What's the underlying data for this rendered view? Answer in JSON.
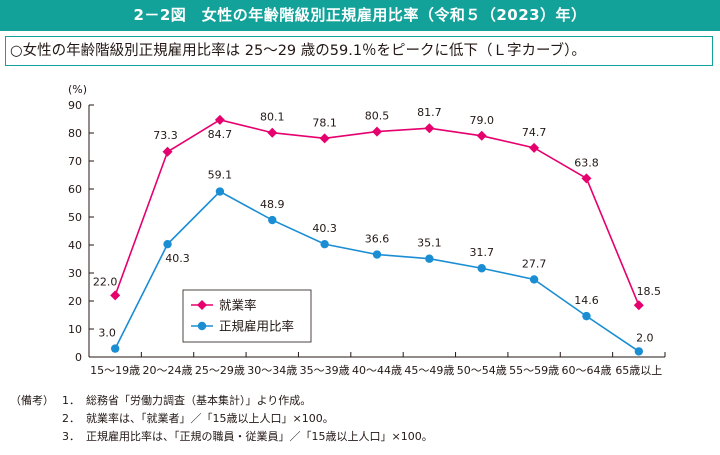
{
  "header": {
    "title": "2－2図　女性の年齢階級別正規雇用比率（令和５（2023）年）",
    "summary": "○女性の年齢階級別正規雇用比率は 25～29 歳の59.1％をピークに低下（Ｌ字カーブ）。"
  },
  "notes": {
    "prefix": "（備考）",
    "items": [
      {
        "num": "1．",
        "text": "総務省「労働力調査（基本集計）」より作成。"
      },
      {
        "num": "2．",
        "text": "就業率は、「就業者」／「15歳以上人口」×100。"
      },
      {
        "num": "3．",
        "text": "正規雇用比率は、「正規の職員・従業員」／「15歳以上人口」×100。"
      }
    ]
  },
  "chart_data": {
    "type": "line",
    "title": "女性の年齢階級別正規雇用比率（令和５（2023）年）",
    "ylabel": "(%)",
    "xlabel": "",
    "ylim": [
      0,
      90
    ],
    "yticks": [
      "0",
      "10",
      "20",
      "30",
      "40",
      "50",
      "60",
      "70",
      "80",
      "90"
    ],
    "categories": [
      "15～19歳",
      "20～24歳",
      "25～29歳",
      "30～34歳",
      "35～39歳",
      "40～44歳",
      "45～49歳",
      "50～54歳",
      "55～59歳",
      "60～64歳",
      "65歳以上"
    ],
    "legend_position": "bottom-left",
    "series": [
      {
        "name": "就業率",
        "color": "#e5006e",
        "marker": "diamond",
        "values": [
          22.0,
          73.3,
          84.7,
          80.1,
          78.1,
          80.5,
          81.7,
          79.0,
          74.7,
          63.8,
          18.5
        ],
        "labels": [
          "22.0",
          "73.3",
          "84.7",
          "80.1",
          "78.1",
          "80.5",
          "81.7",
          "79.0",
          "74.7",
          "63.8",
          "18.5"
        ]
      },
      {
        "name": "正規雇用比率",
        "color": "#1b8ed3",
        "marker": "circle",
        "values": [
          3.0,
          40.3,
          59.1,
          48.9,
          40.3,
          36.6,
          35.1,
          31.7,
          27.7,
          14.6,
          2.0
        ],
        "labels": [
          "3.0",
          "40.3",
          "59.1",
          "48.9",
          "40.3",
          "36.6",
          "35.1",
          "31.7",
          "27.7",
          "14.6",
          "2.0"
        ]
      }
    ]
  }
}
